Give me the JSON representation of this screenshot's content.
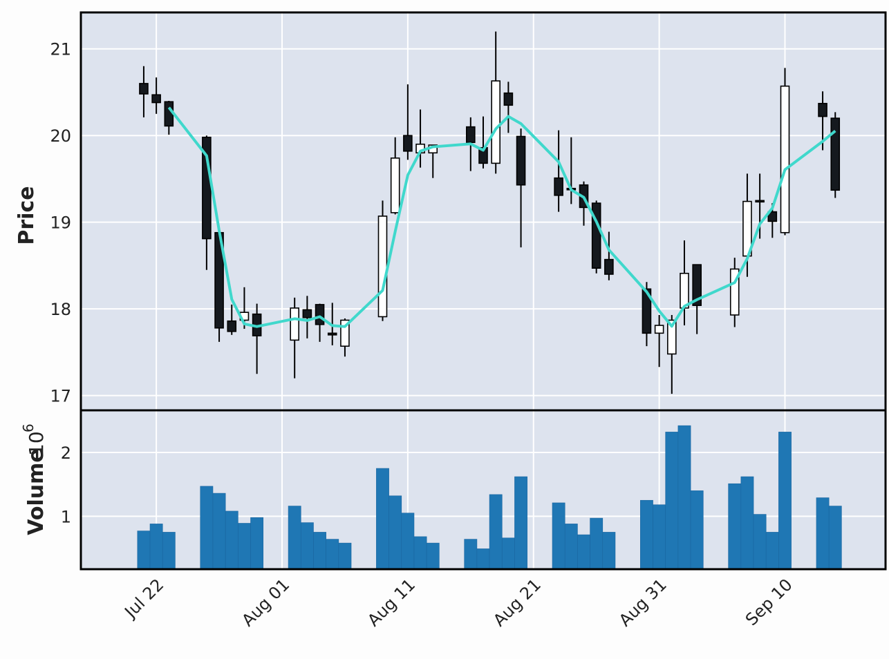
{
  "chart_data": [
    {
      "type": "candlestick",
      "panel": "price",
      "ylabel": "Price",
      "ylim": [
        16.83,
        21.42
      ],
      "yticks": [
        "17",
        "18",
        "19",
        "20",
        "21"
      ],
      "xtick_labels": [
        {
          "date": "2021-07-22",
          "label": "Jul 22"
        },
        {
          "date": "2021-08-01",
          "label": "Aug 01"
        },
        {
          "date": "2021-08-11",
          "label": "Aug 11"
        },
        {
          "date": "2021-08-21",
          "label": "Aug 21"
        },
        {
          "date": "2021-08-31",
          "label": "Aug 31"
        },
        {
          "date": "2021-09-10",
          "label": "Sep 10"
        }
      ],
      "xlim": [
        "2021-07-16",
        "2021-09-18"
      ],
      "grid": true,
      "moving_average": {
        "period": 3,
        "color": "#40d8cc"
      },
      "colors": {
        "up": "#ffffff",
        "down": "#15191e",
        "edge": "#000000",
        "background": "#dde3ee",
        "grid": "#ffffff"
      },
      "ohlc": [
        {
          "date": "2021-07-21",
          "o": 20.6,
          "h": 20.8,
          "l": 20.21,
          "c": 20.48
        },
        {
          "date": "2021-07-22",
          "o": 20.47,
          "h": 20.67,
          "l": 20.25,
          "c": 20.38
        },
        {
          "date": "2021-07-23",
          "o": 20.39,
          "h": 20.4,
          "l": 20.01,
          "c": 20.11
        },
        {
          "date": "2021-07-26",
          "o": 19.98,
          "h": 20.0,
          "l": 18.45,
          "c": 18.81
        },
        {
          "date": "2021-07-27",
          "o": 18.88,
          "h": 18.9,
          "l": 17.62,
          "c": 17.78
        },
        {
          "date": "2021-07-28",
          "o": 17.86,
          "h": 18.05,
          "l": 17.7,
          "c": 17.74
        },
        {
          "date": "2021-07-29",
          "o": 17.87,
          "h": 18.25,
          "l": 17.77,
          "c": 17.96
        },
        {
          "date": "2021-07-30",
          "o": 17.94,
          "h": 18.06,
          "l": 17.25,
          "c": 17.69
        },
        {
          "date": "2021-08-02",
          "o": 17.64,
          "h": 18.13,
          "l": 17.2,
          "c": 18.01
        },
        {
          "date": "2021-08-03",
          "o": 17.99,
          "h": 18.15,
          "l": 17.66,
          "c": 17.9
        },
        {
          "date": "2021-08-04",
          "o": 18.05,
          "h": 18.06,
          "l": 17.62,
          "c": 17.82
        },
        {
          "date": "2021-08-05",
          "o": 17.72,
          "h": 18.07,
          "l": 17.58,
          "c": 17.7
        },
        {
          "date": "2021-08-06",
          "o": 17.57,
          "h": 17.89,
          "l": 17.45,
          "c": 17.87
        },
        {
          "date": "2021-08-09",
          "o": 17.91,
          "h": 19.25,
          "l": 17.86,
          "c": 19.07
        },
        {
          "date": "2021-08-10",
          "o": 19.11,
          "h": 19.98,
          "l": 19.09,
          "c": 19.74
        },
        {
          "date": "2021-08-11",
          "o": 20.0,
          "h": 20.59,
          "l": 19.72,
          "c": 19.82
        },
        {
          "date": "2021-08-12",
          "o": 19.8,
          "h": 20.3,
          "l": 19.63,
          "c": 19.9
        },
        {
          "date": "2021-08-13",
          "o": 19.8,
          "h": 19.89,
          "l": 19.51,
          "c": 19.89
        },
        {
          "date": "2021-08-16",
          "o": 20.1,
          "h": 20.21,
          "l": 19.59,
          "c": 19.92
        },
        {
          "date": "2021-08-17",
          "o": 19.86,
          "h": 20.22,
          "l": 19.62,
          "c": 19.68
        },
        {
          "date": "2021-08-18",
          "o": 19.68,
          "h": 21.2,
          "l": 19.56,
          "c": 20.63
        },
        {
          "date": "2021-08-19",
          "o": 20.49,
          "h": 20.62,
          "l": 20.03,
          "c": 20.35
        },
        {
          "date": "2021-08-20",
          "o": 19.99,
          "h": 20.08,
          "l": 18.71,
          "c": 19.43
        },
        {
          "date": "2021-08-23",
          "o": 19.51,
          "h": 20.06,
          "l": 19.12,
          "c": 19.31
        },
        {
          "date": "2021-08-24",
          "o": 19.39,
          "h": 19.98,
          "l": 19.21,
          "c": 19.38
        },
        {
          "date": "2021-08-25",
          "o": 19.43,
          "h": 19.47,
          "l": 18.96,
          "c": 19.17
        },
        {
          "date": "2021-08-26",
          "o": 19.22,
          "h": 19.25,
          "l": 18.41,
          "c": 18.47
        },
        {
          "date": "2021-08-27",
          "o": 18.57,
          "h": 18.89,
          "l": 18.33,
          "c": 18.4
        },
        {
          "date": "2021-08-30",
          "o": 18.23,
          "h": 18.31,
          "l": 17.57,
          "c": 17.72
        },
        {
          "date": "2021-08-31",
          "o": 17.72,
          "h": 17.93,
          "l": 17.33,
          "c": 17.81
        },
        {
          "date": "2021-09-01",
          "o": 17.48,
          "h": 17.93,
          "l": 17.02,
          "c": 17.87
        },
        {
          "date": "2021-09-02",
          "o": 18.01,
          "h": 18.79,
          "l": 17.81,
          "c": 18.41
        },
        {
          "date": "2021-09-03",
          "o": 18.51,
          "h": 18.51,
          "l": 17.71,
          "c": 18.04
        },
        {
          "date": "2021-09-06",
          "o": 17.93,
          "h": 18.59,
          "l": 17.79,
          "c": 18.46
        },
        {
          "date": "2021-09-07",
          "o": 18.61,
          "h": 19.56,
          "l": 18.37,
          "c": 19.24
        },
        {
          "date": "2021-09-08",
          "o": 19.25,
          "h": 19.56,
          "l": 18.81,
          "c": 19.24
        },
        {
          "date": "2021-09-09",
          "o": 19.12,
          "h": 19.22,
          "l": 18.82,
          "c": 19.01
        },
        {
          "date": "2021-09-10",
          "o": 18.88,
          "h": 20.78,
          "l": 18.85,
          "c": 20.57
        },
        {
          "date": "2021-09-13",
          "o": 20.37,
          "h": 20.51,
          "l": 19.83,
          "c": 20.22
        },
        {
          "date": "2021-09-14",
          "o": 20.2,
          "h": 20.27,
          "l": 19.28,
          "c": 19.37
        }
      ]
    },
    {
      "type": "bar",
      "panel": "volume",
      "ylabel": "Volume",
      "yscale_label": "10",
      "yscale_exponent": "6",
      "ylim": [
        0.17,
        2.66
      ],
      "yticks": [
        "1",
        "2"
      ],
      "color": "#1f77b4",
      "values_millions": [
        0.77,
        0.88,
        0.75,
        1.47,
        1.36,
        1.08,
        0.89,
        0.98,
        1.16,
        0.9,
        0.75,
        0.64,
        0.58,
        1.75,
        1.32,
        1.05,
        0.68,
        0.58,
        0.64,
        0.49,
        1.34,
        0.66,
        1.62,
        1.21,
        0.88,
        0.71,
        0.97,
        0.75,
        1.25,
        1.18,
        2.32,
        2.42,
        1.4,
        1.51,
        1.62,
        1.03,
        0.75,
        2.32,
        1.29,
        1.16
      ]
    }
  ]
}
